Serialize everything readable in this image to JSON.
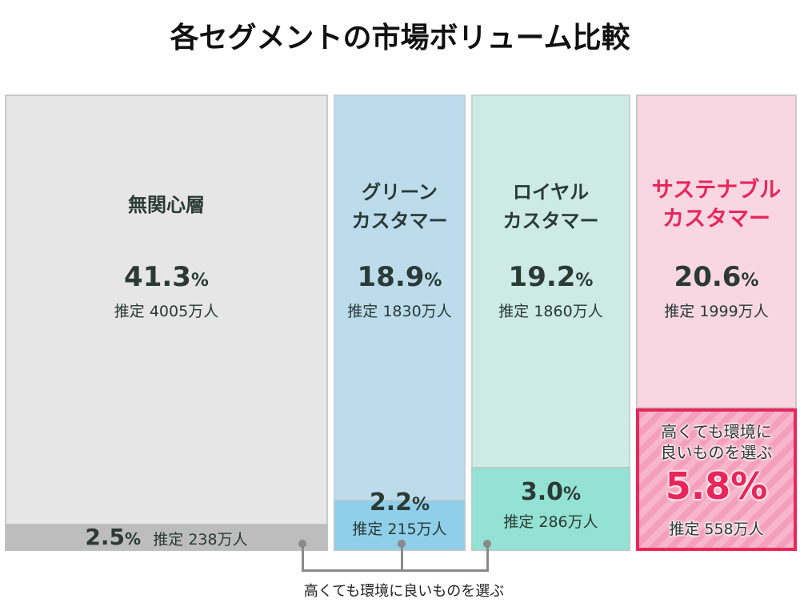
{
  "title": "各セグメントの市場ボリューム比較",
  "chart_data": {
    "type": "mosaic",
    "title": "各セグメントの市場ボリューム比較",
    "unit": "%",
    "segments": [
      {
        "name": "無関心層",
        "total_pct": "41.3",
        "total_est": "推定 4005万人",
        "sub_pct": "2.5",
        "sub_est": "推定 238万人",
        "color": "#e6e6e6",
        "sub_color": "#bdbdbd"
      },
      {
        "name_line1": "グリーン",
        "name_line2": "カスタマー",
        "total_pct": "18.9",
        "total_est": "推定 1830万人",
        "sub_pct": "2.2",
        "sub_est": "推定 215万人",
        "color": "#bcdcec",
        "sub_color": "#8fcfe9"
      },
      {
        "name_line1": "ロイヤル",
        "name_line2": "カスタマー",
        "total_pct": "19.2",
        "total_est": "推定 1860万人",
        "sub_pct": "3.0",
        "sub_est": "推定 286万人",
        "color": "#cdeae4",
        "sub_color": "#93e2d3"
      },
      {
        "name_line1": "サステナブル",
        "name_line2": "カスタマー",
        "total_pct": "20.6",
        "total_est": "推定 1999万人",
        "sub_line1": "高くても環境に",
        "sub_line2": "良いものを選ぶ",
        "sub_pct": "5.8",
        "sub_est": "推定 558万人",
        "color": "#f8d7e3",
        "sub_color": "#f4a0bd",
        "highlight": "#e8265a"
      }
    ],
    "pct_sign": "%",
    "sub_label": "高くても環境に良いものを選ぶ"
  }
}
